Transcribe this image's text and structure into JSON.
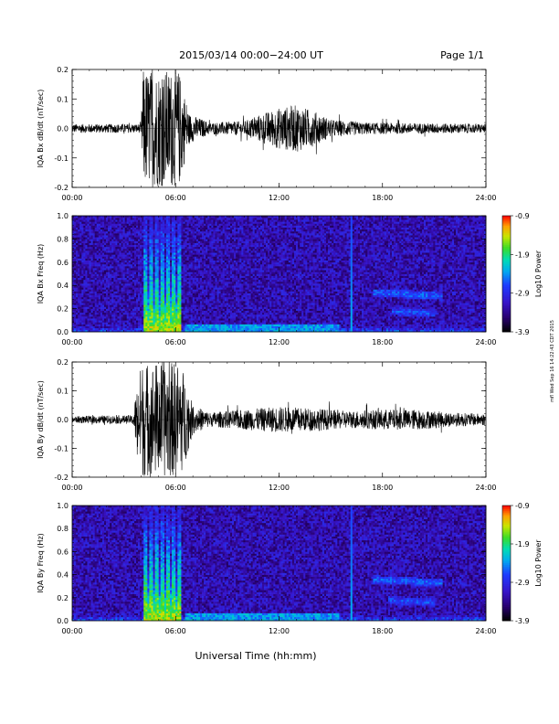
{
  "page": {
    "title": "2015/03/14  00:00−24:00 UT",
    "page_label": "Page 1/1",
    "stamp": "mfl Wed Sep 16 14:22:43 CDT 2015"
  },
  "chart_data": [
    {
      "type": "line",
      "name": "bx-timeseries",
      "ylabel": "IQA Bx dB/dt (nT/sec)",
      "x_unit": "hours UT",
      "xlim": [
        0,
        24
      ],
      "ylim": [
        -0.2,
        0.2
      ],
      "x_ticks": [
        "00:00",
        "06:00",
        "12:00",
        "18:00",
        "24:00"
      ],
      "y_ticks": [
        "0.2",
        "0.1",
        "0.0",
        "-0.1",
        "-0.2"
      ],
      "amplitude_envelope": [
        [
          0,
          0.015
        ],
        [
          4,
          0.015
        ],
        [
          4.1,
          0.2
        ],
        [
          6.2,
          0.2
        ],
        [
          6.8,
          0.05
        ],
        [
          8,
          0.02
        ],
        [
          10,
          0.025
        ],
        [
          11,
          0.05
        ],
        [
          12,
          0.07
        ],
        [
          13,
          0.08
        ],
        [
          14,
          0.06
        ],
        [
          15,
          0.03
        ],
        [
          17,
          0.02
        ],
        [
          24,
          0.015
        ]
      ]
    },
    {
      "type": "heatmap",
      "name": "bx-spectrogram",
      "ylabel": "IQA Bx Freq (Hz)",
      "xlim": [
        0,
        24
      ],
      "ylim": [
        0,
        1.0
      ],
      "x_ticks": [
        "00:00",
        "06:00",
        "12:00",
        "18:00",
        "24:00"
      ],
      "y_ticks": [
        "1.0",
        "0.8",
        "0.6",
        "0.4",
        "0.2",
        "0.0"
      ],
      "colorbar": {
        "label": "Log10 Power",
        "min": -3.9,
        "max": -0.9,
        "ticks": [
          "-0.9",
          "-1.9",
          "-2.9",
          "-3.9"
        ]
      },
      "features": [
        {
          "kind": "broadband burst",
          "t_start": 4.2,
          "t_end": 6.3,
          "log_power": -1.5
        },
        {
          "kind": "vertical line",
          "t": 16.2,
          "log_power": -2.3
        },
        {
          "kind": "band",
          "t_start": 17.5,
          "t_end": 21.5,
          "f_center": 0.34,
          "log_power": -2.6
        },
        {
          "kind": "band",
          "t_start": 18.5,
          "t_end": 21.0,
          "f_center": 0.18,
          "log_power": -2.7
        },
        {
          "kind": "low-frequency floor",
          "t_start": 6.5,
          "t_end": 15.5,
          "f_max": 0.06,
          "log_power": -2.4
        }
      ]
    },
    {
      "type": "line",
      "name": "by-timeseries",
      "ylabel": "IQA By dB/dt (nT/sec)",
      "x_unit": "hours UT",
      "xlim": [
        0,
        24
      ],
      "ylim": [
        -0.2,
        0.2
      ],
      "x_ticks": [
        "00:00",
        "06:00",
        "12:00",
        "18:00",
        "24:00"
      ],
      "y_ticks": [
        "0.2",
        "0.1",
        "0.0",
        "-0.1",
        "-0.2"
      ],
      "amplitude_envelope": [
        [
          0,
          0.012
        ],
        [
          3.5,
          0.015
        ],
        [
          4.0,
          0.2
        ],
        [
          6.3,
          0.2
        ],
        [
          7,
          0.05
        ],
        [
          8,
          0.025
        ],
        [
          10,
          0.035
        ],
        [
          12,
          0.045
        ],
        [
          14,
          0.04
        ],
        [
          16,
          0.03
        ],
        [
          18,
          0.035
        ],
        [
          20,
          0.035
        ],
        [
          22,
          0.025
        ],
        [
          24,
          0.02
        ]
      ]
    },
    {
      "type": "heatmap",
      "name": "by-spectrogram",
      "ylabel": "IQA By Freq (Hz)",
      "xlim": [
        0,
        24
      ],
      "ylim": [
        0,
        1.0
      ],
      "x_ticks": [
        "00:00",
        "06:00",
        "12:00",
        "18:00",
        "24:00"
      ],
      "y_ticks": [
        "1.0",
        "0.8",
        "0.6",
        "0.4",
        "0.2",
        "0.0"
      ],
      "colorbar": {
        "label": "Log10 Power",
        "min": -3.9,
        "max": -0.9,
        "ticks": [
          "-0.9",
          "-1.9",
          "-2.9",
          "-3.9"
        ]
      },
      "features": [
        {
          "kind": "broadband burst",
          "t_start": 4.2,
          "t_end": 6.3,
          "log_power": -1.5
        },
        {
          "kind": "vertical line",
          "t": 16.2,
          "log_power": -2.3
        },
        {
          "kind": "band",
          "t_start": 17.5,
          "t_end": 21.5,
          "f_center": 0.36,
          "log_power": -2.6
        },
        {
          "kind": "band",
          "t_start": 18.3,
          "t_end": 21.0,
          "f_center": 0.18,
          "log_power": -2.7
        },
        {
          "kind": "low-frequency floor",
          "t_start": 6.5,
          "t_end": 15.5,
          "f_max": 0.06,
          "log_power": -2.4
        }
      ]
    }
  ],
  "xlabel": "Universal Time (hh:mm)"
}
